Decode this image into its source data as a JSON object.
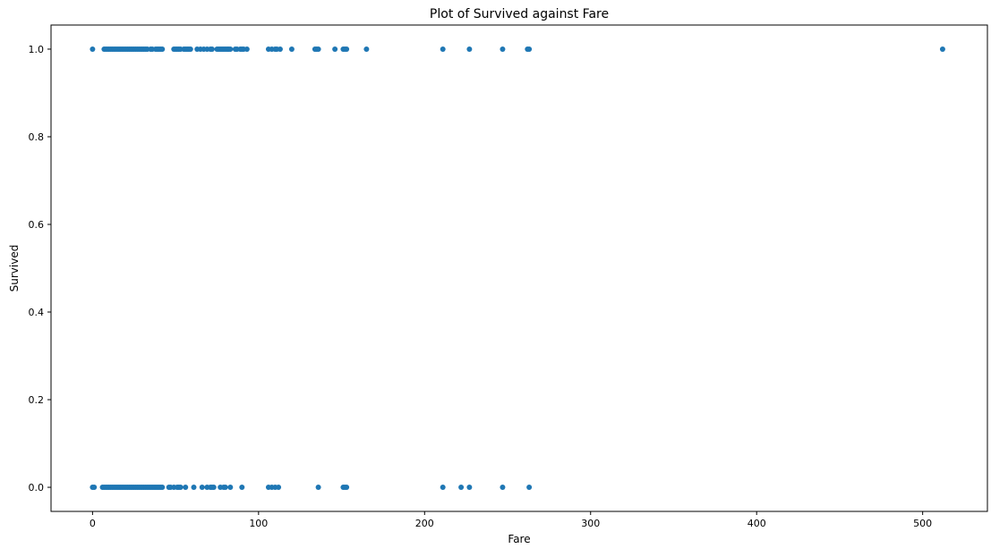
{
  "chart_data": {
    "type": "scatter",
    "title": "Plot of Survived against Fare",
    "xlabel": "Fare",
    "ylabel": "Survived",
    "xlim": [
      -25,
      539
    ],
    "ylim": [
      -0.055,
      1.055
    ],
    "xticks": [
      0,
      100,
      200,
      300,
      400,
      500
    ],
    "xtick_labels": [
      "0",
      "100",
      "200",
      "300",
      "400",
      "500"
    ],
    "yticks": [
      0.0,
      0.2,
      0.4,
      0.6,
      0.8,
      1.0
    ],
    "ytick_labels": [
      "0.0",
      "0.2",
      "0.4",
      "0.6",
      "0.8",
      "1.0"
    ],
    "grid": false,
    "legend": "none",
    "marker_color": "#1f77b4",
    "series": [
      {
        "points": [
          [
            0,
            1
          ],
          [
            7,
            1
          ],
          [
            8,
            1
          ],
          [
            9,
            1
          ],
          [
            10,
            1
          ],
          [
            11,
            1
          ],
          [
            12,
            1
          ],
          [
            13,
            1
          ],
          [
            14,
            1
          ],
          [
            15,
            1
          ],
          [
            16,
            1
          ],
          [
            17,
            1
          ],
          [
            18,
            1
          ],
          [
            19,
            1
          ],
          [
            20,
            1
          ],
          [
            21,
            1
          ],
          [
            22,
            1
          ],
          [
            23,
            1
          ],
          [
            24,
            1
          ],
          [
            25,
            1
          ],
          [
            26,
            1
          ],
          [
            27,
            1
          ],
          [
            28,
            1
          ],
          [
            29,
            1
          ],
          [
            30,
            1
          ],
          [
            31,
            1
          ],
          [
            32,
            1
          ],
          [
            33,
            1
          ],
          [
            35,
            1
          ],
          [
            36,
            1
          ],
          [
            38,
            1
          ],
          [
            39,
            1
          ],
          [
            40,
            1
          ],
          [
            41,
            1
          ],
          [
            42,
            1
          ],
          [
            49,
            1
          ],
          [
            50,
            1
          ],
          [
            51,
            1
          ],
          [
            52,
            1
          ],
          [
            53,
            1
          ],
          [
            55,
            1
          ],
          [
            56,
            1
          ],
          [
            57,
            1
          ],
          [
            58,
            1
          ],
          [
            59,
            1
          ],
          [
            63,
            1
          ],
          [
            65,
            1
          ],
          [
            67,
            1
          ],
          [
            69,
            1
          ],
          [
            71,
            1
          ],
          [
            72,
            1
          ],
          [
            75,
            1
          ],
          [
            76,
            1
          ],
          [
            77,
            1
          ],
          [
            78,
            1
          ],
          [
            79,
            1
          ],
          [
            80,
            1
          ],
          [
            81,
            1
          ],
          [
            82,
            1
          ],
          [
            83,
            1
          ],
          [
            86,
            1
          ],
          [
            87,
            1
          ],
          [
            89,
            1
          ],
          [
            90,
            1
          ],
          [
            91,
            1
          ],
          [
            93,
            1
          ],
          [
            106,
            1
          ],
          [
            108,
            1
          ],
          [
            110,
            1
          ],
          [
            111,
            1
          ],
          [
            113,
            1
          ],
          [
            120,
            1
          ],
          [
            134,
            1
          ],
          [
            135,
            1
          ],
          [
            136,
            1
          ],
          [
            146,
            1
          ],
          [
            151,
            1
          ],
          [
            152,
            1
          ],
          [
            153,
            1
          ],
          [
            165,
            1
          ],
          [
            211,
            1
          ],
          [
            227,
            1
          ],
          [
            247,
            1
          ],
          [
            262,
            1
          ],
          [
            263,
            1
          ],
          [
            512,
            1
          ],
          [
            0,
            0
          ],
          [
            1,
            0
          ],
          [
            6,
            0
          ],
          [
            7,
            0
          ],
          [
            8,
            0
          ],
          [
            9,
            0
          ],
          [
            10,
            0
          ],
          [
            11,
            0
          ],
          [
            12,
            0
          ],
          [
            13,
            0
          ],
          [
            14,
            0
          ],
          [
            15,
            0
          ],
          [
            16,
            0
          ],
          [
            17,
            0
          ],
          [
            18,
            0
          ],
          [
            19,
            0
          ],
          [
            20,
            0
          ],
          [
            21,
            0
          ],
          [
            22,
            0
          ],
          [
            23,
            0
          ],
          [
            24,
            0
          ],
          [
            25,
            0
          ],
          [
            26,
            0
          ],
          [
            27,
            0
          ],
          [
            28,
            0
          ],
          [
            29,
            0
          ],
          [
            30,
            0
          ],
          [
            31,
            0
          ],
          [
            32,
            0
          ],
          [
            33,
            0
          ],
          [
            34,
            0
          ],
          [
            35,
            0
          ],
          [
            36,
            0
          ],
          [
            37,
            0
          ],
          [
            38,
            0
          ],
          [
            39,
            0
          ],
          [
            40,
            0
          ],
          [
            41,
            0
          ],
          [
            42,
            0
          ],
          [
            46,
            0
          ],
          [
            47,
            0
          ],
          [
            49,
            0
          ],
          [
            51,
            0
          ],
          [
            52,
            0
          ],
          [
            53,
            0
          ],
          [
            56,
            0
          ],
          [
            61,
            0
          ],
          [
            66,
            0
          ],
          [
            69,
            0
          ],
          [
            71,
            0
          ],
          [
            72,
            0
          ],
          [
            73,
            0
          ],
          [
            77,
            0
          ],
          [
            79,
            0
          ],
          [
            80,
            0
          ],
          [
            83,
            0
          ],
          [
            90,
            0
          ],
          [
            106,
            0
          ],
          [
            108,
            0
          ],
          [
            110,
            0
          ],
          [
            112,
            0
          ],
          [
            136,
            0
          ],
          [
            151,
            0
          ],
          [
            152,
            0
          ],
          [
            153,
            0
          ],
          [
            211,
            0
          ],
          [
            222,
            0
          ],
          [
            227,
            0
          ],
          [
            247,
            0
          ],
          [
            263,
            0
          ]
        ]
      }
    ]
  }
}
